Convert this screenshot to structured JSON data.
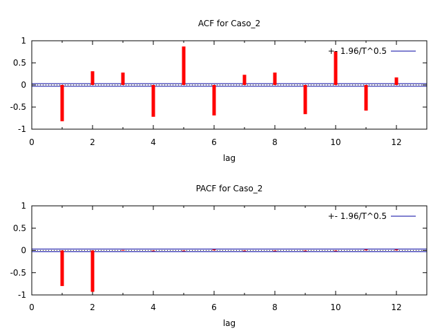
{
  "chart_data": [
    {
      "type": "bar",
      "title": "ACF for Caso_2",
      "xlabel": "lag",
      "ylabel": "",
      "xlim": [
        0,
        13
      ],
      "ylim": [
        -1,
        1
      ],
      "xticks": [
        0,
        2,
        4,
        6,
        8,
        10,
        12
      ],
      "yticks": [
        -1,
        -0.5,
        0,
        0.5,
        1
      ],
      "lags": [
        1,
        2,
        3,
        4,
        5,
        6,
        7,
        8,
        9,
        10,
        11,
        12
      ],
      "values": [
        -0.82,
        0.31,
        0.28,
        -0.72,
        0.87,
        -0.69,
        0.23,
        0.28,
        -0.66,
        0.76,
        -0.58,
        0.17
      ],
      "bound": 0.03,
      "legend_label": "+- 1.96/T^0.5",
      "legend_position": "top-right",
      "bar_color": "#ff0000",
      "bound_color": "#0000a0"
    },
    {
      "type": "bar",
      "title": "PACF for Caso_2",
      "xlabel": "lag",
      "ylabel": "",
      "xlim": [
        0,
        13
      ],
      "ylim": [
        -1,
        1
      ],
      "xticks": [
        0,
        2,
        4,
        6,
        8,
        10,
        12
      ],
      "yticks": [
        -1,
        -0.5,
        0,
        0.5,
        1
      ],
      "lags": [
        1,
        2,
        3,
        4,
        5,
        6,
        7,
        8,
        9,
        10,
        11,
        12
      ],
      "values": [
        -0.8,
        -0.93,
        0.01,
        0.0,
        -0.01,
        0.02,
        0.0,
        0.0,
        -0.01,
        -0.01,
        0.02,
        0.02
      ],
      "bound": 0.03,
      "legend_label": "+- 1.96/T^0.5",
      "legend_position": "top-right",
      "bar_color": "#ff0000",
      "bound_color": "#0000a0"
    }
  ]
}
